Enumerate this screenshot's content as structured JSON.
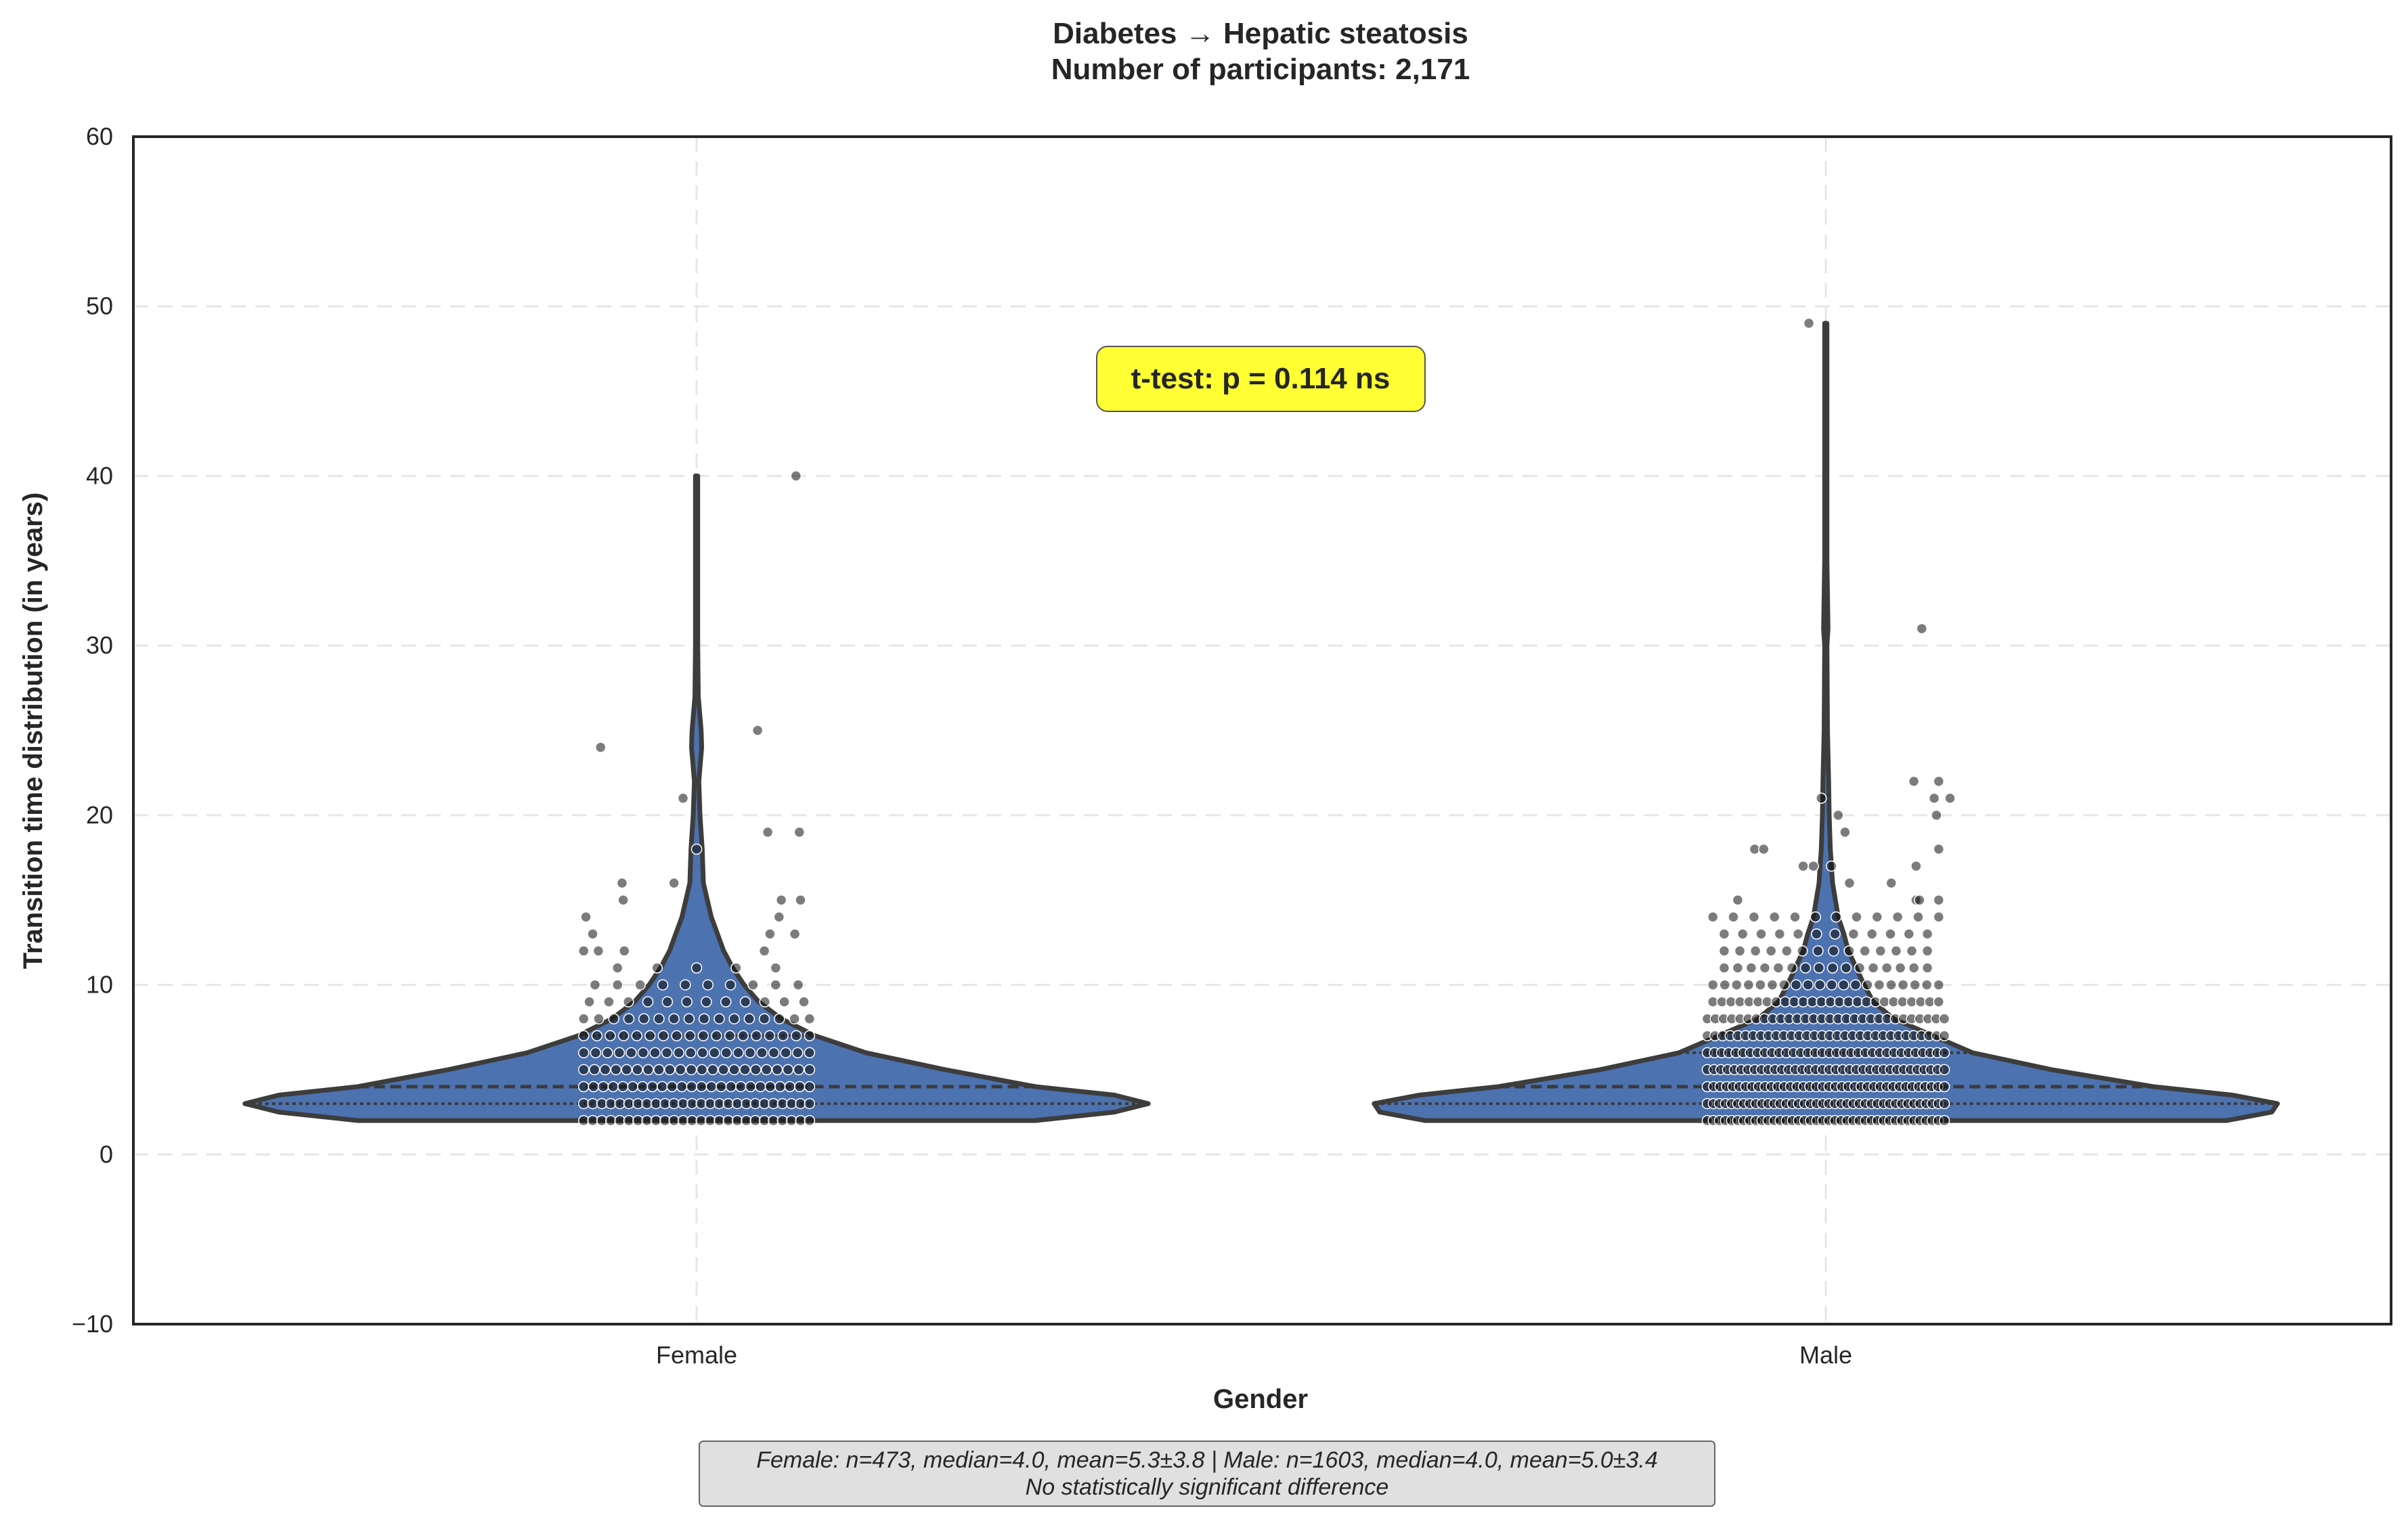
{
  "chart_data": {
    "type": "violin",
    "title_line1": "Diabetes → Hepatic steatosis",
    "title_line2": "Number of participants: 2,171",
    "xlabel": "Gender",
    "ylabel": "Transition time distribution (in years)",
    "ylim": [
      -10,
      60
    ],
    "yticks": [
      -10,
      0,
      10,
      20,
      30,
      40,
      50,
      60
    ],
    "ytick_labels": [
      "−10",
      "0",
      "10",
      "20",
      "30",
      "40",
      "50",
      "60"
    ],
    "categories": [
      "Female",
      "Male"
    ],
    "grid": true,
    "violin_color": "#4c72b0",
    "point_color": "#111111",
    "annotation": {
      "text": "t-test: p = 0.114 ns",
      "background": "#ffff33"
    },
    "footnote": {
      "line1": "Female: n=473, median=4.0, mean=5.3±3.8 | Male: n=1603, median=4.0, mean=5.0±3.4",
      "line2": "No statistically significant difference",
      "background": "#e0e0e0"
    },
    "series": [
      {
        "category": "Female",
        "n": 473,
        "median": 4.0,
        "mean": 5.3,
        "sd": 3.8,
        "quartiles": [
          3,
          4,
          7
        ],
        "density": [
          {
            "y": 2,
            "hw": 0.3
          },
          {
            "y": 2.5,
            "hw": 0.37
          },
          {
            "y": 3,
            "hw": 0.4
          },
          {
            "y": 3.5,
            "hw": 0.37
          },
          {
            "y": 4,
            "hw": 0.3
          },
          {
            "y": 5,
            "hw": 0.22
          },
          {
            "y": 6,
            "hw": 0.15
          },
          {
            "y": 7,
            "hw": 0.105
          },
          {
            "y": 8,
            "hw": 0.075
          },
          {
            "y": 9,
            "hw": 0.055
          },
          {
            "y": 10,
            "hw": 0.042
          },
          {
            "y": 11,
            "hw": 0.032
          },
          {
            "y": 12,
            "hw": 0.024
          },
          {
            "y": 14,
            "hw": 0.013
          },
          {
            "y": 16,
            "hw": 0.006
          },
          {
            "y": 18,
            "hw": 0.005
          },
          {
            "y": 20,
            "hw": 0.003
          },
          {
            "y": 22,
            "hw": 0.002
          },
          {
            "y": 24,
            "hw": 0.0045
          },
          {
            "y": 25,
            "hw": 0.004
          },
          {
            "y": 27,
            "hw": 0.0015
          },
          {
            "y": 30,
            "hw": 0.001
          },
          {
            "y": 35,
            "hw": 0.001
          },
          {
            "y": 40,
            "hw": 0.001
          }
        ],
        "outliers": [
          {
            "y": 40,
            "dx": 0.088
          },
          {
            "y": 25,
            "dx": 0.054
          },
          {
            "y": 24,
            "dx": -0.085
          },
          {
            "y": 21,
            "dx": -0.012
          },
          {
            "y": 19,
            "dx": 0.063
          },
          {
            "y": 19,
            "dx": 0.091
          },
          {
            "y": 18,
            "dx": 0.0
          },
          {
            "y": 16,
            "dx": -0.066
          },
          {
            "y": 16,
            "dx": -0.02
          },
          {
            "y": 15,
            "dx": 0.075
          },
          {
            "y": 15,
            "dx": 0.092
          },
          {
            "y": 15,
            "dx": -0.065
          },
          {
            "y": 14,
            "dx": -0.098
          },
          {
            "y": 14,
            "dx": 0.073
          },
          {
            "y": 13,
            "dx": 0.065
          },
          {
            "y": 13,
            "dx": 0.087
          },
          {
            "y": 13,
            "dx": -0.092
          },
          {
            "y": 12,
            "dx": -0.1
          },
          {
            "y": 12,
            "dx": -0.087
          },
          {
            "y": 12,
            "dx": -0.064
          },
          {
            "y": 12,
            "dx": 0.06
          }
        ],
        "dense_rows": [
          {
            "y": 2,
            "count": 26,
            "spread": 0.1
          },
          {
            "y": 3,
            "count": 26,
            "spread": 0.1
          },
          {
            "y": 4,
            "count": 24,
            "spread": 0.1
          },
          {
            "y": 5,
            "count": 22,
            "spread": 0.1
          },
          {
            "y": 6,
            "count": 20,
            "spread": 0.1
          },
          {
            "y": 7,
            "count": 18,
            "spread": 0.1
          },
          {
            "y": 8,
            "count": 16,
            "spread": 0.1
          },
          {
            "y": 9,
            "count": 12,
            "spread": 0.095
          },
          {
            "y": 10,
            "count": 10,
            "spread": 0.09
          },
          {
            "y": 11,
            "count": 5,
            "spread": 0.07
          }
        ]
      },
      {
        "category": "Male",
        "n": 1603,
        "median": 4.0,
        "mean": 5.0,
        "sd": 3.4,
        "quartiles": [
          3,
          4,
          6
        ],
        "density": [
          {
            "y": 2,
            "hw": 0.355
          },
          {
            "y": 2.5,
            "hw": 0.395
          },
          {
            "y": 3,
            "hw": 0.4
          },
          {
            "y": 3.5,
            "hw": 0.36
          },
          {
            "y": 4,
            "hw": 0.29
          },
          {
            "y": 5,
            "hw": 0.2
          },
          {
            "y": 6,
            "hw": 0.13
          },
          {
            "y": 7,
            "hw": 0.095
          },
          {
            "y": 8,
            "hw": 0.06
          },
          {
            "y": 9,
            "hw": 0.042
          },
          {
            "y": 10,
            "hw": 0.034
          },
          {
            "y": 11,
            "hw": 0.027
          },
          {
            "y": 12,
            "hw": 0.02
          },
          {
            "y": 13,
            "hw": 0.016
          },
          {
            "y": 14,
            "hw": 0.011
          },
          {
            "y": 16,
            "hw": 0.006
          },
          {
            "y": 18,
            "hw": 0.004
          },
          {
            "y": 20,
            "hw": 0.003
          },
          {
            "y": 22,
            "hw": 0.0025
          },
          {
            "y": 25,
            "hw": 0.0015
          },
          {
            "y": 30,
            "hw": 0.001
          },
          {
            "y": 31,
            "hw": 0.002
          },
          {
            "y": 35,
            "hw": 0.001
          },
          {
            "y": 40,
            "hw": 0.001
          },
          {
            "y": 45,
            "hw": 0.001
          },
          {
            "y": 49,
            "hw": 0.001
          }
        ],
        "outliers": [
          {
            "y": 49,
            "dx": -0.015
          },
          {
            "y": 31,
            "dx": 0.085
          },
          {
            "y": 22,
            "dx": 0.078
          },
          {
            "y": 22,
            "dx": 0.1
          },
          {
            "y": 21,
            "dx": 0.096
          },
          {
            "y": 21,
            "dx": 0.11
          },
          {
            "y": 21,
            "dx": -0.004
          },
          {
            "y": 20,
            "dx": 0.098
          },
          {
            "y": 20,
            "dx": 0.011
          },
          {
            "y": 19,
            "dx": 0.017
          },
          {
            "y": 18,
            "dx": -0.063
          },
          {
            "y": 18,
            "dx": -0.055
          },
          {
            "y": 18,
            "dx": 0.1
          },
          {
            "y": 17,
            "dx": -0.02
          },
          {
            "y": 17,
            "dx": -0.011
          },
          {
            "y": 17,
            "dx": 0.005
          },
          {
            "y": 17,
            "dx": 0.08
          },
          {
            "y": 16,
            "dx": 0.021
          },
          {
            "y": 16,
            "dx": 0.058
          },
          {
            "y": 15,
            "dx": -0.078
          },
          {
            "y": 15,
            "dx": 0.08
          },
          {
            "y": 15,
            "dx": 0.083
          },
          {
            "y": 15,
            "dx": 0.1
          }
        ],
        "dense_rows": [
          {
            "y": 2,
            "count": 40,
            "spread": 0.105
          },
          {
            "y": 3,
            "count": 40,
            "spread": 0.105
          },
          {
            "y": 4,
            "count": 38,
            "spread": 0.105
          },
          {
            "y": 5,
            "count": 36,
            "spread": 0.105
          },
          {
            "y": 6,
            "count": 34,
            "spread": 0.105
          },
          {
            "y": 7,
            "count": 32,
            "spread": 0.105
          },
          {
            "y": 8,
            "count": 30,
            "spread": 0.105
          },
          {
            "y": 9,
            "count": 26,
            "spread": 0.1
          },
          {
            "y": 10,
            "count": 20,
            "spread": 0.1
          },
          {
            "y": 11,
            "count": 16,
            "spread": 0.09
          },
          {
            "y": 12,
            "count": 14,
            "spread": 0.09
          },
          {
            "y": 13,
            "count": 12,
            "spread": 0.09
          },
          {
            "y": 14,
            "count": 12,
            "spread": 0.1
          }
        ]
      }
    ]
  }
}
